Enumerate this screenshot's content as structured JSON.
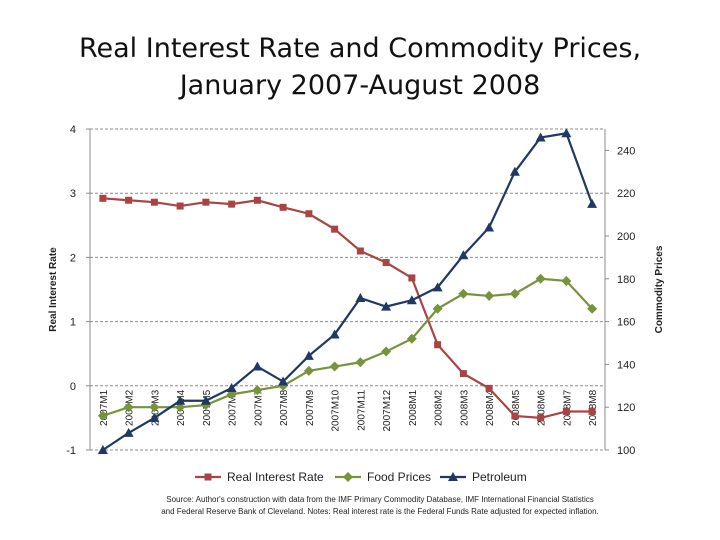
{
  "slide": {
    "title_line1": "Real Interest Rate and Commodity Prices,",
    "title_line2": "January 2007-August 2008",
    "source_line1": "Source: Author's construction with data from the IMF Primary Commodity Database, IMF International Financial Statistics",
    "source_line2": "and Federal Reserve Bank of Cleveland.  Notes: Real interest rate is the Federal Funds Rate adjusted for expected inflation."
  },
  "chart_data": {
    "type": "line",
    "categories": [
      "2007M1",
      "2007M2",
      "2007M3",
      "2007M4",
      "2007M5",
      "2007M6",
      "2007M7",
      "2007M8",
      "2007M9",
      "2007M10",
      "2007M11",
      "2007M12",
      "2008M1",
      "2008M2",
      "2008M3",
      "2008M4",
      "2008M5",
      "2008M6",
      "2008M7",
      "2008M8"
    ],
    "ylabel": "Real Interest Rate",
    "y2label": "Commodity Prices",
    "ylim": [
      -1,
      4
    ],
    "y2lim": [
      100,
      250
    ],
    "yticks": [
      "-1",
      "0",
      "1",
      "2",
      "3",
      "4"
    ],
    "y2ticks": [
      "100",
      "120",
      "140",
      "160",
      "180",
      "200",
      "220",
      "240"
    ],
    "grid": true,
    "legend_position": "bottom",
    "series": [
      {
        "name": "Real Interest Rate",
        "axis": "left",
        "color": "#a94442",
        "marker": "square",
        "values": [
          2.92,
          2.89,
          2.86,
          2.8,
          2.86,
          2.83,
          2.89,
          2.78,
          2.68,
          2.44,
          2.1,
          1.92,
          1.68,
          0.64,
          0.19,
          -0.04,
          -0.47,
          -0.5,
          -0.4,
          -0.4
        ]
      },
      {
        "name": "Food Prices",
        "axis": "right",
        "color": "#77933c",
        "marker": "diamond",
        "values": [
          116,
          120,
          120,
          120,
          121,
          126,
          128,
          130,
          137,
          139,
          141,
          146,
          152,
          166,
          173,
          172,
          173,
          180,
          179,
          166
        ]
      },
      {
        "name": "Petroleum",
        "axis": "right",
        "color": "#1f3864",
        "marker": "triangle",
        "values": [
          100,
          108,
          115,
          123,
          123,
          129,
          139,
          132,
          144,
          154,
          171,
          167,
          170,
          176,
          191,
          204,
          230,
          246,
          248,
          215
        ]
      }
    ]
  }
}
